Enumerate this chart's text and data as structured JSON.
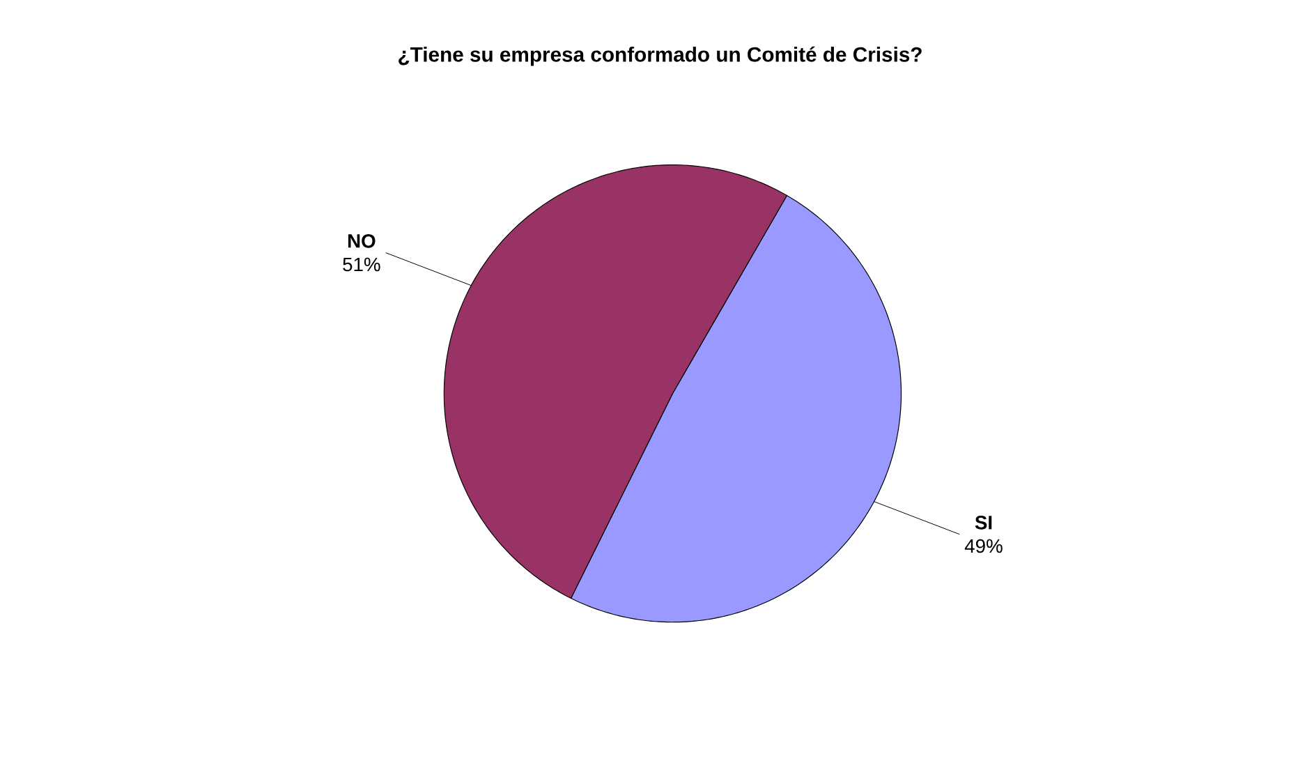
{
  "chart_data": {
    "type": "pie",
    "title": "¿Tiene su empresa conformado un Comité de Crisis?",
    "categories": [
      "SI",
      "NO"
    ],
    "values": [
      49,
      51
    ],
    "value_labels": [
      "49%",
      "51%"
    ],
    "colors": [
      "#9999ff",
      "#993366"
    ]
  }
}
